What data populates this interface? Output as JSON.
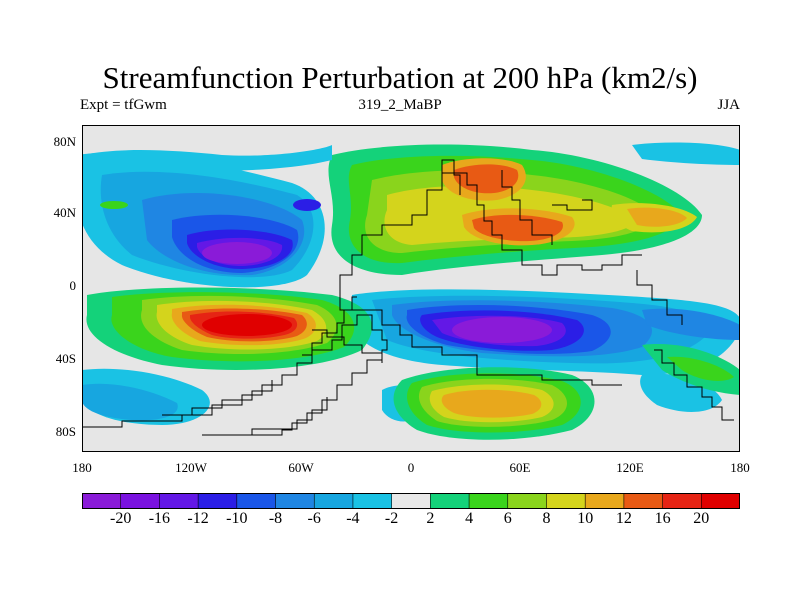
{
  "title": "Streamfunction Perturbation at 200 hPa (km2/s)",
  "left_label": "Expt = tfGwm",
  "center_label": "319_2_MaBP",
  "right_label": "JJA",
  "lat_labels": [
    "80N",
    "40N",
    "0",
    "40S",
    "80S"
  ],
  "lon_labels": [
    "180",
    "120W",
    "60W",
    "0",
    "60E",
    "120E",
    "180"
  ],
  "colorbar": {
    "labels": [
      "-20",
      "-16",
      "-12",
      "-10",
      "-8",
      "-6",
      "-4",
      "-2",
      "2",
      "4",
      "6",
      "8",
      "10",
      "12",
      "16",
      "20"
    ],
    "colors": [
      "#8a1bd8",
      "#7a12e0",
      "#6318e6",
      "#2b1ee6",
      "#1a56e8",
      "#1f86e3",
      "#17a6e0",
      "#1ac2e4",
      "#e8e8e8",
      "#14d27a",
      "#3ad41c",
      "#8ad41c",
      "#d4d41c",
      "#e8a81c",
      "#e85a14",
      "#e62414",
      "#e00000"
    ]
  }
}
